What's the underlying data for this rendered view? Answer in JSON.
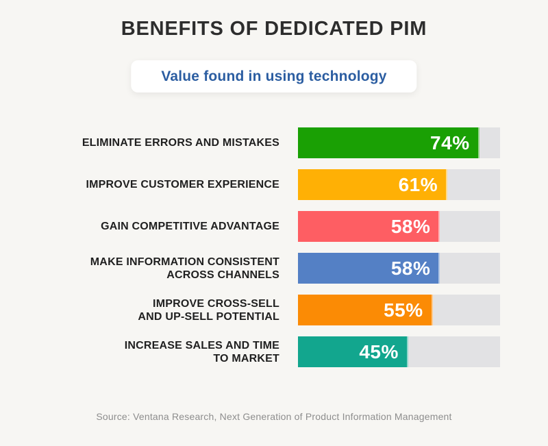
{
  "page": {
    "title": "BENEFITS OF DEDICATED PIM",
    "subtitle": "Value found in using technology",
    "source": "Source: Ventana Research, Next Generation of Product Information Management"
  },
  "colors": {
    "background": "#f7f6f3",
    "title_text": "#2d2d2d",
    "subtitle_text": "#2b5da1",
    "subtitle_pill_bg": "#ffffff",
    "label_text": "#1f1f1f",
    "bar_track": "#e2e2e4",
    "value_text": "#ffffff",
    "source_text": "#8d8d8d"
  },
  "chart_data": {
    "type": "bar",
    "orientation": "horizontal",
    "title": "BENEFITS OF DEDICATED PIM",
    "subtitle": "Value found in using technology",
    "xlabel": "",
    "ylabel": "",
    "grid": false,
    "legend": false,
    "x_max_display": 82.5,
    "categories": [
      "ELIMINATE ERRORS AND MISTAKES",
      "IMPROVE CUSTOMER EXPERIENCE",
      "GAIN COMPETITIVE ADVANTAGE",
      "MAKE INFORMATION CONSISTENT ACROSS CHANNELS",
      "IMPROVE CROSS-SELL AND UP-SELL POTENTIAL",
      "INCREASE SALES AND TIME TO MARKET"
    ],
    "values": [
      74,
      61,
      58,
      58,
      55,
      45
    ],
    "rows": [
      {
        "label": "ELIMINATE ERRORS AND MISTAKES",
        "lines": [
          "ELIMINATE ERRORS AND MISTAKES"
        ],
        "value": 74,
        "value_label": "74%",
        "color": "#1aa004"
      },
      {
        "label": "IMPROVE CUSTOMER EXPERIENCE",
        "lines": [
          "IMPROVE CUSTOMER EXPERIENCE"
        ],
        "value": 61,
        "value_label": "61%",
        "color": "#ffb005"
      },
      {
        "label": "GAIN COMPETITIVE ADVANTAGE",
        "lines": [
          "GAIN COMPETITIVE ADVANTAGE"
        ],
        "value": 58,
        "value_label": "58%",
        "color": "#fe5e63"
      },
      {
        "label": "MAKE INFORMATION CONSISTENT ACROSS CHANNELS",
        "lines": [
          "MAKE INFORMATION CONSISTENT",
          "ACROSS CHANNELS"
        ],
        "value": 58,
        "value_label": "58%",
        "color": "#5480c5"
      },
      {
        "label": "IMPROVE CROSS-SELL AND UP-SELL POTENTIAL",
        "lines": [
          "IMPROVE CROSS-SELL",
          "AND UP-SELL POTENTIAL"
        ],
        "value": 55,
        "value_label": "55%",
        "color": "#fb8b05"
      },
      {
        "label": "INCREASE SALES AND TIME TO MARKET",
        "lines": [
          "INCREASE SALES AND TIME",
          "TO MARKET"
        ],
        "value": 45,
        "value_label": "45%",
        "color": "#12a68e"
      }
    ],
    "source": "Source: Ventana Research, Next Generation of Product Information Management"
  }
}
